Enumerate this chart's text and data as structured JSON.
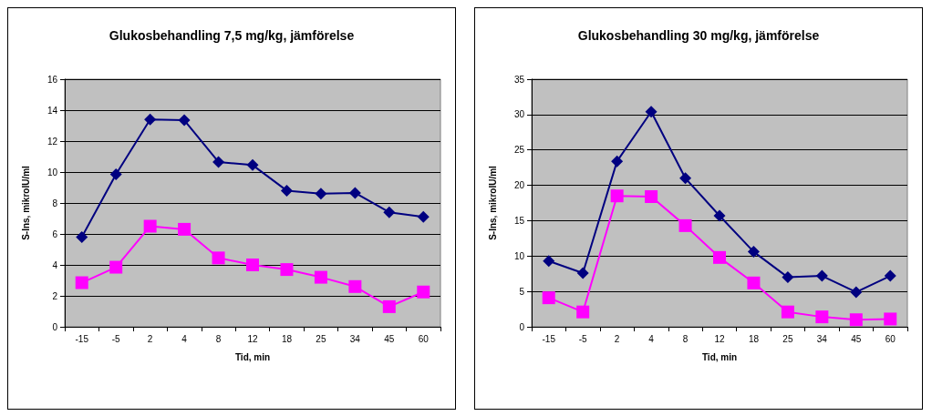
{
  "chart_data": [
    {
      "type": "line",
      "title": "Glukosbehandling 7,5 mg/kg, jämförelse",
      "xlabel": "Tid, min",
      "ylabel": "S-Ins, mikroIU/ml",
      "categories": [
        "-15",
        "-5",
        "2",
        "4",
        "8",
        "12",
        "18",
        "25",
        "34",
        "45",
        "60"
      ],
      "series": [
        {
          "color": "#000080",
          "marker": "diamond",
          "values": [
            5.8,
            9.85,
            13.4,
            13.35,
            10.65,
            10.45,
            8.8,
            8.6,
            8.65,
            7.4,
            7.1
          ]
        },
        {
          "color": "#ff00ff",
          "marker": "square",
          "values": [
            2.85,
            3.85,
            6.5,
            6.3,
            4.45,
            4.0,
            3.7,
            3.2,
            2.6,
            1.3,
            2.25
          ]
        }
      ],
      "ylim": [
        0,
        16
      ],
      "yticks": [
        0,
        2,
        4,
        6,
        8,
        10,
        12,
        14,
        16
      ],
      "grid": "y"
    },
    {
      "type": "line",
      "title": "Glukosbehandling 30 mg/kg, jämförelse",
      "xlabel": "Tid, min",
      "ylabel": "S-Ins, mikroIU/ml",
      "categories": [
        "-15",
        "-5",
        "2",
        "4",
        "8",
        "12",
        "18",
        "25",
        "34",
        "45",
        "60"
      ],
      "series": [
        {
          "color": "#000080",
          "marker": "diamond",
          "values": [
            9.3,
            7.6,
            23.4,
            30.4,
            21.0,
            15.7,
            10.6,
            7.0,
            7.2,
            4.9,
            7.2
          ]
        },
        {
          "color": "#ff00ff",
          "marker": "square",
          "values": [
            4.1,
            2.1,
            18.5,
            18.4,
            14.3,
            9.8,
            6.2,
            2.1,
            1.4,
            1.0,
            1.1
          ]
        }
      ],
      "ylim": [
        0,
        35
      ],
      "yticks": [
        0,
        5,
        10,
        15,
        20,
        25,
        30,
        35
      ],
      "grid": "y"
    }
  ]
}
